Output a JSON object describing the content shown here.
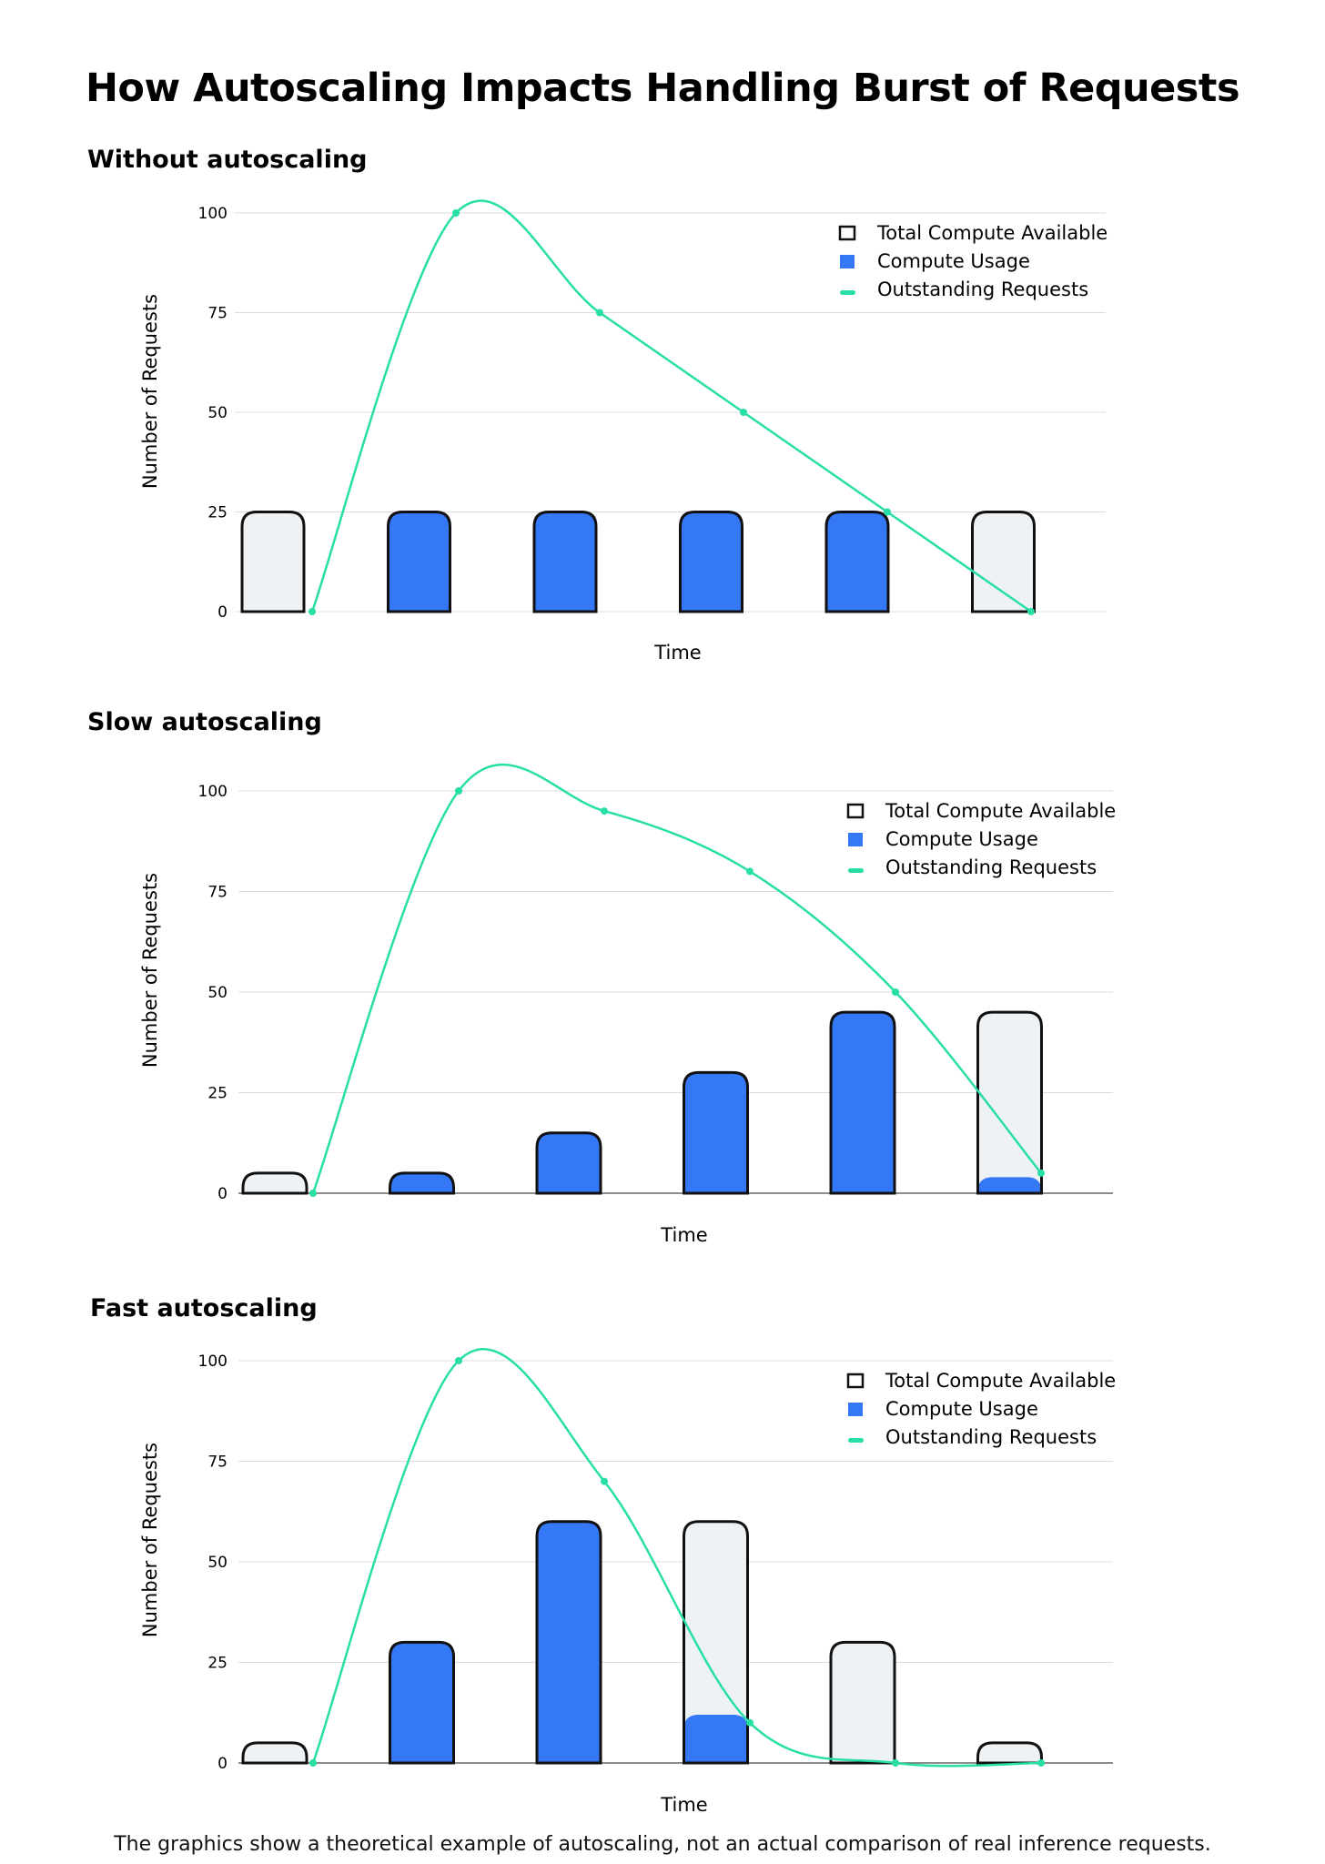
{
  "title": "How Autoscaling Impacts Handling Burst of Requests",
  "footnote": "The graphics show a theoretical example of autoscaling, not an actual comparison of real inference requests.",
  "colors": {
    "usage": "#3478f6",
    "available_fill": "#eef2f5",
    "outline": "#111111",
    "requests_line": "#27dfa6",
    "grid": "#dcdcdc"
  },
  "chart_data": [
    {
      "type": "bar",
      "title": "Without autoscaling",
      "xlabel": "Time",
      "ylabel": "Number of Requests",
      "ylim": [
        0,
        100
      ],
      "yticks": [
        0,
        25,
        50,
        75,
        100
      ],
      "grid": true,
      "legend_position": "top-right",
      "series": [
        {
          "name": "Total Compute Available",
          "values": [
            25,
            25,
            25,
            25,
            25,
            25
          ]
        },
        {
          "name": "Compute Usage",
          "values": [
            0,
            25,
            25,
            25,
            25,
            0
          ]
        },
        {
          "name": "Outstanding Requests",
          "values": [
            0,
            100,
            75,
            50,
            25,
            0
          ]
        }
      ]
    },
    {
      "type": "bar",
      "title": "Slow autoscaling",
      "xlabel": "Time",
      "ylabel": "Number of Requests",
      "ylim": [
        0,
        100
      ],
      "yticks": [
        0,
        25,
        50,
        75,
        100
      ],
      "grid": true,
      "legend_position": "top-right",
      "series": [
        {
          "name": "Total Compute Available",
          "values": [
            5,
            5,
            15,
            30,
            45,
            45
          ]
        },
        {
          "name": "Compute Usage",
          "values": [
            0,
            5,
            15,
            30,
            45,
            4
          ]
        },
        {
          "name": "Outstanding Requests",
          "values": [
            0,
            100,
            95,
            80,
            50,
            5
          ]
        }
      ]
    },
    {
      "type": "bar",
      "title": "Fast autoscaling",
      "xlabel": "Time",
      "ylabel": "Number of Requests",
      "ylim": [
        0,
        100
      ],
      "yticks": [
        0,
        25,
        50,
        75,
        100
      ],
      "grid": true,
      "legend_position": "top-right",
      "series": [
        {
          "name": "Total Compute Available",
          "values": [
            5,
            30,
            60,
            60,
            30,
            5
          ]
        },
        {
          "name": "Compute Usage",
          "values": [
            0,
            30,
            60,
            12,
            0,
            0
          ]
        },
        {
          "name": "Outstanding Requests",
          "values": [
            0,
            100,
            70,
            10,
            0,
            0
          ]
        }
      ]
    }
  ]
}
